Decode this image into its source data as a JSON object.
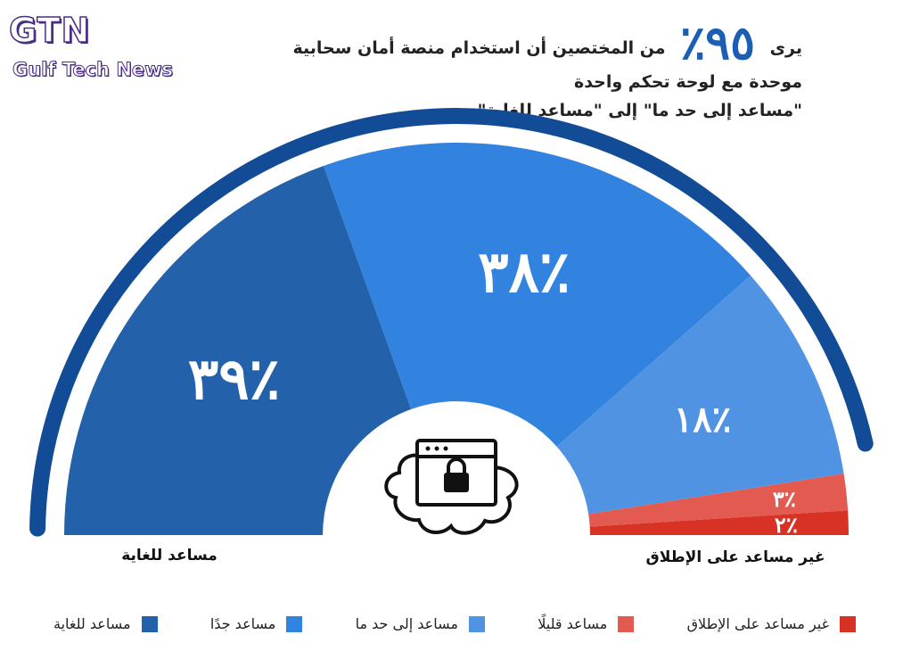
{
  "logo": {
    "title": "GTN",
    "subtitle": "Gulf Tech News"
  },
  "headline": {
    "prefix": "يرى",
    "percent": "٩٥٪",
    "line1_rest": "من المختصين أن استخدام منصة أمان سحابية موحدة مع لوحة تحكم واحدة",
    "line2": "\"مساعد إلى حد ما\" إلى \"مساعد للغاية\""
  },
  "chart_data": {
    "type": "pie",
    "shape": "half-donut",
    "categories": [
      "مساعد للغاية",
      "مساعد جدًا",
      "مساعد إلى حد ما",
      "مساعد قليلًا",
      "غير مساعد على الإطلاق"
    ],
    "values": [
      39,
      38,
      18,
      3,
      2
    ],
    "labels": [
      "٣٩٪",
      "٣٨٪",
      "١٨٪",
      "٣٪",
      "٢٪"
    ],
    "colors": [
      "#2361ab",
      "#3282e0",
      "#4f93e2",
      "#e25a50",
      "#d83225"
    ],
    "legend_position": "bottom",
    "left_end_label": "مساعد للغاية",
    "right_end_label": "غير مساعد على الإطلاق"
  },
  "center_icon": "cloud-lock-icon",
  "arc_color": "#134c96"
}
